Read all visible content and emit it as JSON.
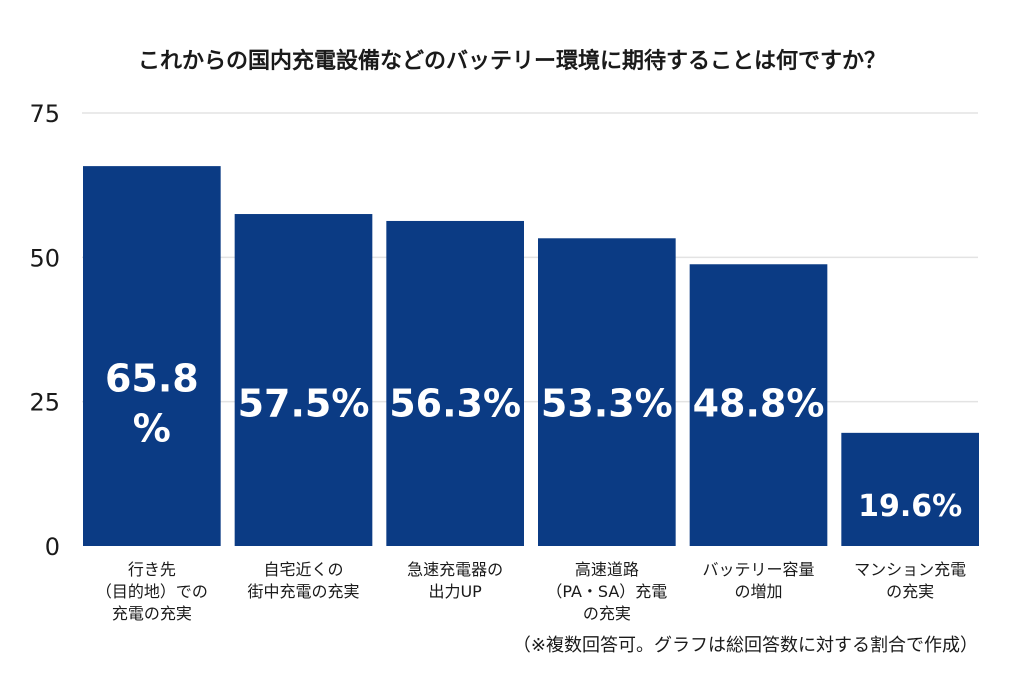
{
  "chart_data": {
    "type": "bar",
    "title": "これからの国内充電設備などのバッテリー環境に期待することは何ですか？",
    "categories": [
      [
        "行き先",
        "（目的地）での",
        "充電の充実"
      ],
      [
        "自宅近くの",
        "街中充電の充実"
      ],
      [
        "急速充電器の",
        "出力UP"
      ],
      [
        "高速道路",
        "（PA・SA）充電",
        "の充実"
      ],
      [
        "バッテリー容量",
        "の増加"
      ],
      [
        "マンション充電",
        "の充実"
      ]
    ],
    "values": [
      65.8,
      57.5,
      56.3,
      53.3,
      48.8,
      19.6
    ],
    "data_labels": [
      [
        "65.8",
        "%"
      ],
      [
        "57.5%"
      ],
      [
        "56.3%"
      ],
      [
        "53.3%"
      ],
      [
        "48.8%"
      ],
      [
        "19.6%"
      ]
    ],
    "ylim": [
      0,
      75
    ],
    "yticks": [
      "0",
      "25",
      "50",
      "75"
    ],
    "grid": true,
    "note": "（※複数回答可。グラフは総回答数に対する割合で作成）",
    "colors": {
      "bar": "#0b3b84",
      "grid": "#e3e3e3",
      "text": "#1a1a1a",
      "label": "#ffffff"
    }
  }
}
